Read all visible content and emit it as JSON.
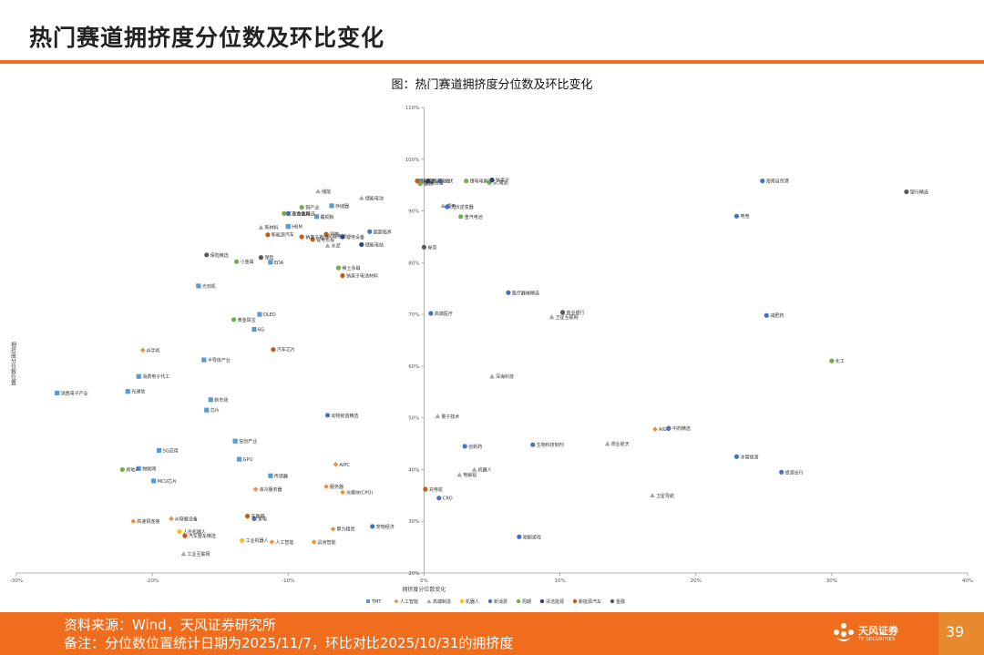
{
  "header": {
    "title": "热门赛道拥挤度分位数及环比变化"
  },
  "chart_data": {
    "type": "scatter",
    "title": "图：热门赛道拥挤度分位数及环比变化",
    "xlabel": "拥挤度分位数变化",
    "ylabel": "拥挤度分位数位置",
    "xlim": [
      -0.3,
      0.4
    ],
    "ylim": [
      0.2,
      1.1
    ],
    "x_ticks": [
      "-30%",
      "-20%",
      "-10%",
      "0%",
      "10%",
      "20%",
      "30%",
      "40%"
    ],
    "y_ticks": [
      "20%",
      "30%",
      "40%",
      "50%",
      "60%",
      "70%",
      "80%",
      "90%",
      "100%",
      "110%"
    ],
    "grid": false,
    "legend_position": "bottom",
    "series": [
      {
        "name": "TMT",
        "color": "#5b9bd5",
        "marker": "square",
        "points": [
          {
            "label": "AI芯片",
            "x": -0.0032,
            "y": 0.958
          },
          {
            "label": "存储器",
            "x": -0.068,
            "y": 0.91
          },
          {
            "label": "覆铜板",
            "x": -0.079,
            "y": 0.889
          },
          {
            "label": "HBM",
            "x": -0.1,
            "y": 0.87
          },
          {
            "label": "EDA",
            "x": -0.113,
            "y": 0.801
          },
          {
            "label": "光刻机",
            "x": -0.166,
            "y": 0.755
          },
          {
            "label": "OLED",
            "x": -0.121,
            "y": 0.7
          },
          {
            "label": "6G",
            "x": -0.125,
            "y": 0.671
          },
          {
            "label": "半导体产业",
            "x": -0.162,
            "y": 0.612
          },
          {
            "label": "消费电子代工",
            "x": -0.21,
            "y": 0.58
          },
          {
            "label": "光通信",
            "x": -0.218,
            "y": 0.551
          },
          {
            "label": "消费电子产业",
            "x": -0.27,
            "y": 0.548
          },
          {
            "label": "新市场",
            "x": -0.157,
            "y": 0.535
          },
          {
            "label": "芯片",
            "x": -0.16,
            "y": 0.515
          },
          {
            "label": "信创产业",
            "x": -0.139,
            "y": 0.455
          },
          {
            "label": "SG应用",
            "x": -0.195,
            "y": 0.437
          },
          {
            "label": "GPU",
            "x": -0.136,
            "y": 0.42
          },
          {
            "label": "物联网",
            "x": -0.21,
            "y": 0.402
          },
          {
            "label": "MCU芯片",
            "x": -0.199,
            "y": 0.378
          },
          {
            "label": "传感器",
            "x": -0.113,
            "y": 0.388
          }
        ]
      },
      {
        "name": "人工智能",
        "color": "#f0903a",
        "marker": "diamond",
        "points": [
          {
            "label": "AI手机",
            "x": -0.207,
            "y": 0.631
          },
          {
            "label": "AIPC",
            "x": -0.065,
            "y": 0.41
          },
          {
            "label": "服务器",
            "x": -0.072,
            "y": 0.367
          },
          {
            "label": "液冷服务器",
            "x": -0.124,
            "y": 0.362
          },
          {
            "label": "光模块(CPO)",
            "x": -0.06,
            "y": 0.356
          },
          {
            "label": "AI穿戴设备",
            "x": -0.186,
            "y": 0.305
          },
          {
            "label": "高速铜连接",
            "x": -0.214,
            "y": 0.3
          },
          {
            "label": "算力租赁",
            "x": -0.067,
            "y": 0.285
          },
          {
            "label": "AIGC",
            "x": 0.17,
            "y": 0.478
          },
          {
            "label": "人工智能",
            "x": -0.112,
            "y": 0.26
          },
          {
            "label": "具身智能",
            "x": -0.081,
            "y": 0.26
          }
        ]
      },
      {
        "name": "高端制造",
        "color": "#a5a5a5",
        "marker": "triangle",
        "points": [
          {
            "label": "风电设备",
            "x": -0.0018,
            "y": 0.955
          },
          {
            "label": "储能",
            "x": -0.078,
            "y": 0.938
          },
          {
            "label": "储能电池",
            "x": -0.046,
            "y": 0.925
          },
          {
            "label": "锂电",
            "x": 0.014,
            "y": 0.91
          },
          {
            "label": "新材料",
            "x": -0.12,
            "y": 0.868
          },
          {
            "label": "锂电池",
            "x": -0.07,
            "y": 0.852
          },
          {
            "label": "水泥",
            "x": -0.071,
            "y": 0.833
          },
          {
            "label": "卫星互联网",
            "x": 0.094,
            "y": 0.695
          },
          {
            "label": "深海科技",
            "x": 0.05,
            "y": 0.58
          },
          {
            "label": "量子技术",
            "x": 0.01,
            "y": 0.503
          },
          {
            "label": "商业航天",
            "x": 0.135,
            "y": 0.45
          },
          {
            "label": "机器人",
            "x": 0.037,
            "y": 0.4
          },
          {
            "label": "电解铝",
            "x": 0.026,
            "y": 0.39
          },
          {
            "label": "卫星导航",
            "x": 0.168,
            "y": 0.35
          },
          {
            "label": "工业互联网",
            "x": -0.177,
            "y": 0.237
          }
        ]
      },
      {
        "name": "机器人",
        "color": "#ffc000",
        "marker": "circle",
        "points": [
          {
            "label": "人形机器人",
            "x": -0.18,
            "y": 0.28
          },
          {
            "label": "工业机器人",
            "x": -0.134,
            "y": 0.263
          }
        ]
      },
      {
        "name": "新消费",
        "color": "#4472c4",
        "marker": "circle",
        "points": [
          {
            "label": "光伏",
            "x": 0.012,
            "y": 0.958
          },
          {
            "label": "海南自贸港",
            "x": 0.249,
            "y": 0.958
          },
          {
            "label": "光伏逆变器",
            "x": 0.017,
            "y": 0.908
          },
          {
            "label": "电竞",
            "x": 0.23,
            "y": 0.89
          },
          {
            "label": "有色金属",
            "x": -0.1,
            "y": 0.895
          },
          {
            "label": "超超临界",
            "x": -0.04,
            "y": 0.86
          },
          {
            "label": "医疗器械精选",
            "x": 0.062,
            "y": 0.742
          },
          {
            "label": "减肥药",
            "x": 0.252,
            "y": 0.698
          },
          {
            "label": "高端医疗",
            "x": 0.005,
            "y": 0.702
          },
          {
            "label": "中药精选",
            "x": 0.18,
            "y": 0.48
          },
          {
            "label": "冰雪旅游",
            "x": 0.23,
            "y": 0.425
          },
          {
            "label": "旅游出行",
            "x": 0.263,
            "y": 0.395
          },
          {
            "label": "生物科技制剂",
            "x": 0.08,
            "y": 0.448
          },
          {
            "label": "创新药",
            "x": 0.03,
            "y": 0.445
          },
          {
            "label": "动物疫苗精选",
            "x": -0.071,
            "y": 0.505
          },
          {
            "label": "家电",
            "x": -0.125,
            "y": 0.305
          },
          {
            "label": "宠物经济",
            "x": -0.038,
            "y": 0.29
          },
          {
            "label": "短剧游戏",
            "x": 0.07,
            "y": 0.27
          },
          {
            "label": "CRO",
            "x": 0.011,
            "y": 0.345
          }
        ]
      },
      {
        "name": "周期",
        "color": "#70ad47",
        "marker": "circle",
        "points": [
          {
            "label": "锂电电解液",
            "x": 0.031,
            "y": 0.958
          },
          {
            "label": "SC电池",
            "x": 0.048,
            "y": 0.955
          },
          {
            "label": "钢铁",
            "x": -0.003,
            "y": 0.953
          },
          {
            "label": "铜产业",
            "x": -0.09,
            "y": 0.907
          },
          {
            "label": "工业金属精选",
            "x": -0.103,
            "y": 0.895
          },
          {
            "label": "重汽电池",
            "x": 0.027,
            "y": 0.889
          },
          {
            "label": "小金属",
            "x": -0.138,
            "y": 0.802
          },
          {
            "label": "黄金珠宝",
            "x": -0.14,
            "y": 0.69
          },
          {
            "label": "稀土永磁",
            "x": -0.063,
            "y": 0.79
          },
          {
            "label": "化工",
            "x": 0.3,
            "y": 0.61
          },
          {
            "label": "房地产",
            "x": -0.222,
            "y": 0.4
          }
        ]
      },
      {
        "name": "清洁能源",
        "color": "#264478",
        "marker": "circle",
        "points": [
          {
            "label": "固态电池",
            "x": 0.003,
            "y": 0.958
          },
          {
            "label": "钠离子",
            "x": 0.05,
            "y": 0.96
          },
          {
            "label": "储能电站",
            "x": -0.046,
            "y": 0.835
          },
          {
            "label": "锂电设备",
            "x": -0.06,
            "y": 0.85
          }
        ]
      },
      {
        "name": "新能源汽车",
        "color": "#c55a11",
        "marker": "circle",
        "points": [
          {
            "label": "新能源",
            "x": -0.005,
            "y": 0.958
          },
          {
            "label": "锂电负极",
            "x": -0.082,
            "y": 0.845
          },
          {
            "label": "铜箔",
            "x": -0.072,
            "y": 0.855
          },
          {
            "label": "钠离子电池",
            "x": -0.09,
            "y": 0.85
          },
          {
            "label": "汽车芯片",
            "x": -0.111,
            "y": 0.632
          },
          {
            "label": "车联网",
            "x": -0.13,
            "y": 0.31
          },
          {
            "label": "汽车整车精选",
            "x": -0.176,
            "y": 0.272
          },
          {
            "label": "新能源汽车",
            "x": -0.115,
            "y": 0.854
          },
          {
            "label": "钠离子电池材料",
            "x": -0.06,
            "y": 0.775
          },
          {
            "label": "充电桩",
            "x": 0.001,
            "y": 0.362
          }
        ]
      },
      {
        "name": "金融",
        "color": "#595959",
        "marker": "circle",
        "points": [
          {
            "label": "银行精选",
            "x": 0.355,
            "y": 0.937
          },
          {
            "label": "保险",
            "x": -0.12,
            "y": 0.81
          },
          {
            "label": "券商",
            "x": 0.0,
            "y": 0.83
          },
          {
            "label": "商业银行",
            "x": 0.102,
            "y": 0.704
          },
          {
            "label": "保险精选",
            "x": -0.16,
            "y": 0.815
          }
        ]
      }
    ]
  },
  "footer": {
    "source": "资料来源：Wind，天风证券研究所",
    "note": "备注：分位数位置统计日期为2025/11/7，环比对比2025/10/31的拥挤度"
  },
  "brand": {
    "name": "天风证券",
    "sub": "TF SECURITIES"
  },
  "page_number": "39"
}
